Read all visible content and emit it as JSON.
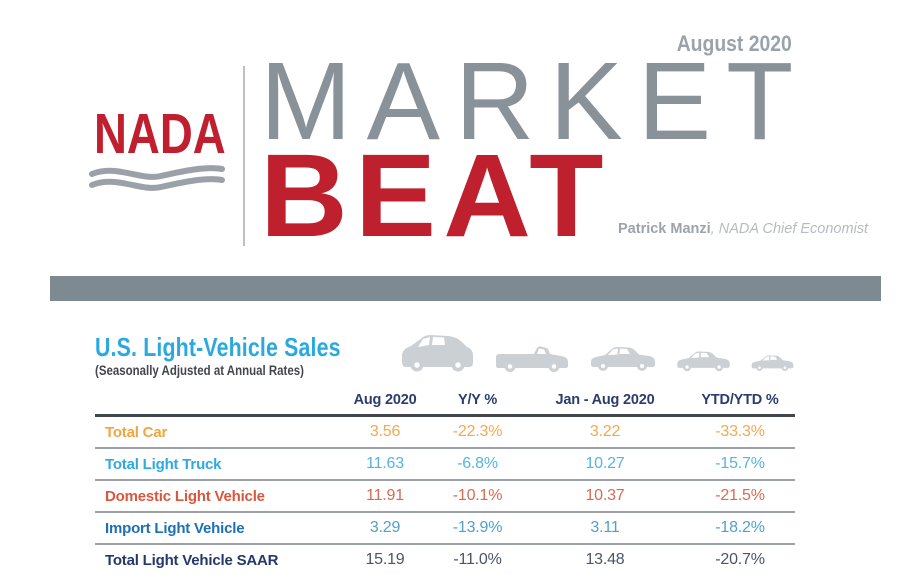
{
  "header": {
    "issue_date": "August 2020",
    "logo": "NADA",
    "masthead": {
      "line1": "MARKET",
      "line2": "BEAT"
    },
    "byline": {
      "name": "Patrick Manzi",
      "title": ", NADA Chief Economist"
    }
  },
  "section": {
    "title": "U.S. Light-Vehicle Sales",
    "subtitle": "(Seasonally Adjusted at Annual Rates)"
  },
  "icons": [
    "suv-icon",
    "pickup-truck-icon",
    "sedan-icon",
    "small-sedan-icon",
    "compact-car-icon"
  ],
  "table": {
    "columns": [
      "",
      "Aug 2020",
      "Y/Y %",
      "Jan - Aug 2020",
      "YTD/YTD %"
    ],
    "rows": [
      {
        "label": "Total Car",
        "values": [
          "3.56",
          "-22.3%",
          "3.22",
          "-33.3%"
        ],
        "label_color": "#F2A43F",
        "value_color": "#F2A94E"
      },
      {
        "label": "Total Light Truck",
        "values": [
          "11.63",
          "-6.8%",
          "10.27",
          "-15.7%"
        ],
        "label_color": "#2FA9E1",
        "value_color": "#55B4E2"
      },
      {
        "label": "Domestic Light Vehicle",
        "values": [
          "11.91",
          "-10.1%",
          "10.37",
          "-21.5%"
        ],
        "label_color": "#D8583E",
        "value_color": "#D96A52"
      },
      {
        "label": "Import Light Vehicle",
        "values": [
          "3.29",
          "-13.9%",
          "3.11",
          "-18.2%"
        ],
        "label_color": "#1E6FB4",
        "value_color": "#4FA0CC"
      },
      {
        "label": "Total Light Vehicle SAAR",
        "values": [
          "15.19",
          "-11.0%",
          "13.48",
          "-20.7%"
        ],
        "label_color": "#24396B",
        "value_color": "#4A5468"
      }
    ]
  },
  "chart_data": {
    "type": "table",
    "title": "U.S. Light-Vehicle Sales",
    "subtitle": "(Seasonally Adjusted at Annual Rates)",
    "columns": [
      "Aug 2020",
      "Y/Y %",
      "Jan - Aug 2020",
      "YTD/YTD %"
    ],
    "rows": [
      {
        "label": "Total Car",
        "aug_2020": 3.56,
        "yy_pct": -22.3,
        "jan_aug_2020": 3.22,
        "ytd_ytd_pct": -33.3
      },
      {
        "label": "Total Light Truck",
        "aug_2020": 11.63,
        "yy_pct": -6.8,
        "jan_aug_2020": 10.27,
        "ytd_ytd_pct": -15.7
      },
      {
        "label": "Domestic Light Vehicle",
        "aug_2020": 11.91,
        "yy_pct": -10.1,
        "jan_aug_2020": 10.37,
        "ytd_ytd_pct": -21.5
      },
      {
        "label": "Import Light Vehicle",
        "aug_2020": 3.29,
        "yy_pct": -13.9,
        "jan_aug_2020": 3.11,
        "ytd_ytd_pct": -18.2
      },
      {
        "label": "Total Light Vehicle SAAR",
        "aug_2020": 15.19,
        "yy_pct": -11.0,
        "jan_aug_2020": 13.48,
        "ytd_ytd_pct": -20.7
      }
    ]
  },
  "colors": {
    "accent_blue": "#2AA9E1",
    "nada_red": "#C01F2F",
    "beat_red": "#BE202E",
    "masthead_gray": "#8A9299",
    "divider_bar_gray": "#7D8A92",
    "table_header_navy": "#2B3C6E",
    "vehicle_icon_gray": "#CBD0D4"
  }
}
